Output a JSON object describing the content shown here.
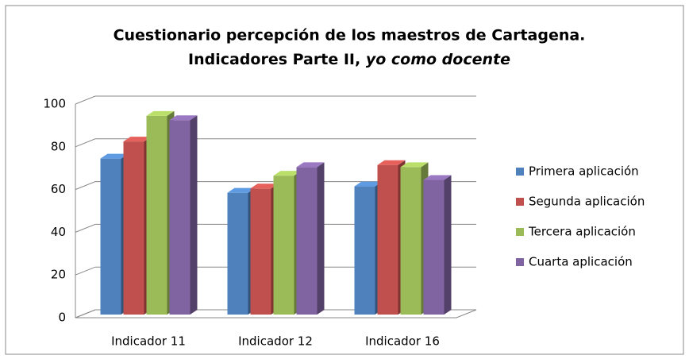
{
  "chart_data": {
    "type": "bar3d",
    "title": "Cuestionario percepción de los maestros de Cartagena.",
    "subtitle": "Indicadores Parte II,",
    "subtitle_italic": "yo como docente",
    "categories": [
      "Indicador 11",
      "Indicador 12",
      "Indicador 16"
    ],
    "series": [
      {
        "name": "Primera aplicación",
        "color": "#4f81bd",
        "values": [
          73,
          57,
          60
        ]
      },
      {
        "name": "Segunda aplicación",
        "color": "#c0504d",
        "values": [
          81,
          59,
          70
        ]
      },
      {
        "name": "Tercera aplicación",
        "color": "#9bbb59",
        "values": [
          93,
          65,
          69
        ]
      },
      {
        "name": "Cuarta aplicación",
        "color": "#8064a2",
        "values": [
          91,
          69,
          63
        ]
      }
    ],
    "ylim": [
      0,
      100
    ],
    "yticks": [
      0,
      20,
      40,
      60,
      80,
      100
    ],
    "grid": true,
    "legend": "right"
  }
}
